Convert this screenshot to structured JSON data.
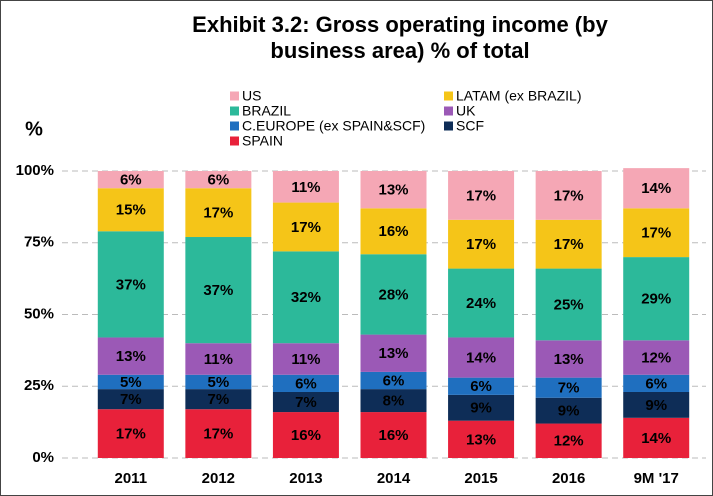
{
  "chart_data": {
    "type": "stacked_bar",
    "title": "Exhibit 3.2: Gross operating income (by business area) % of total",
    "y_label": "%",
    "categories": [
      "2011",
      "2012",
      "2013",
      "2014",
      "2015",
      "2016",
      "9M '17"
    ],
    "series": [
      {
        "name": "SPAIN",
        "color": "#e8213a",
        "values": [
          17,
          17,
          16,
          16,
          13,
          12,
          14
        ],
        "value_labels": [
          "17%",
          "17%",
          "16%",
          "16%",
          "13%",
          "12%",
          "14%"
        ]
      },
      {
        "name": "SCF",
        "color": "#0e2d57",
        "values": [
          7,
          7,
          7,
          8,
          9,
          9,
          9
        ],
        "value_labels": [
          "7%",
          "7%",
          "7%",
          "8%",
          "9%",
          "9%",
          "9%"
        ]
      },
      {
        "name": "C.EUROPE (ex SPAIN&SCF)",
        "color": "#1f6fbf",
        "values": [
          5,
          5,
          6,
          6,
          6,
          7,
          6
        ],
        "value_labels": [
          "5%",
          "5%",
          "6%",
          "6%",
          "6%",
          "7%",
          "6%"
        ]
      },
      {
        "name": "UK",
        "color": "#9b59b6",
        "values": [
          13,
          11,
          11,
          13,
          14,
          13,
          12
        ],
        "value_labels": [
          "13%",
          "11%",
          "11%",
          "13%",
          "14%",
          "13%",
          "12%"
        ]
      },
      {
        "name": "BRAZIL",
        "color": "#2cb99a",
        "values": [
          37,
          37,
          32,
          28,
          24,
          25,
          29
        ],
        "value_labels": [
          "37%",
          "37%",
          "32%",
          "28%",
          "24%",
          "25%",
          "29%"
        ]
      },
      {
        "name": "LATAM (ex BRAZIL)",
        "color": "#f5c518",
        "values": [
          15,
          17,
          17,
          16,
          17,
          17,
          17
        ],
        "value_labels": [
          "15%",
          "17%",
          "17%",
          "16%",
          "17%",
          "17%",
          "17%"
        ]
      },
      {
        "name": "US",
        "color": "#f5a7b5",
        "values": [
          6,
          6,
          11,
          13,
          17,
          17,
          14
        ],
        "value_labels": [
          "6%",
          "6%",
          "11%",
          "13%",
          "17%",
          "17%",
          "14%"
        ]
      }
    ],
    "ylim": [
      0,
      100
    ],
    "yticks": [
      {
        "value": 0,
        "label": "0%"
      },
      {
        "value": 25,
        "label": "25%"
      },
      {
        "value": 50,
        "label": "50%"
      },
      {
        "value": 75,
        "label": "75%"
      },
      {
        "value": 100,
        "label": "100%"
      }
    ],
    "grid": true
  }
}
